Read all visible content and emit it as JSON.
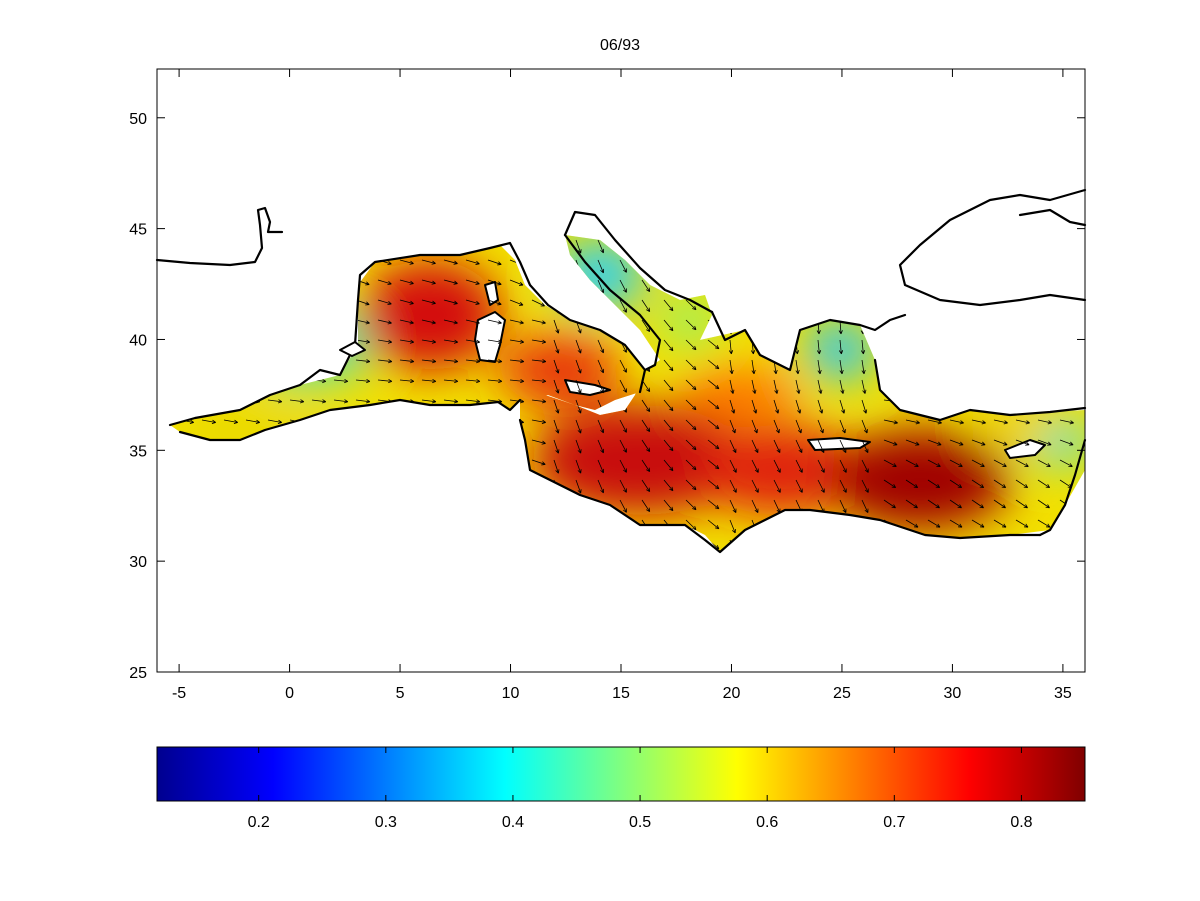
{
  "title": "06/93",
  "map": {
    "x_ticks": [
      -5,
      0,
      5,
      10,
      15,
      20,
      25,
      30,
      35
    ],
    "y_ticks": [
      25,
      30,
      35,
      40,
      45,
      50
    ],
    "xlim": [
      -6,
      36
    ],
    "ylim": [
      25,
      52.2
    ]
  },
  "colorbar": {
    "colormap": "jet",
    "range": [
      0.12,
      0.85
    ],
    "ticks": [
      0.2,
      0.3,
      0.4,
      0.5,
      0.6,
      0.7,
      0.8
    ]
  },
  "chart_data": {
    "type": "heatmap",
    "title": "06/93",
    "xlabel": "",
    "ylabel": "",
    "xlim": [
      -6,
      36
    ],
    "ylim": [
      25,
      52.2
    ],
    "overlay": "vector field arrows",
    "hotspots": [
      {
        "lon": 6,
        "lat": 41,
        "value": 0.82
      },
      {
        "lon": 15,
        "lat": 34.5,
        "value": 0.8
      },
      {
        "lon": 28,
        "lat": 33.8,
        "value": 0.84
      },
      {
        "lon": 12.5,
        "lat": 38.5,
        "value": 0.72
      }
    ],
    "lowspots": [
      {
        "lon": 15,
        "lat": 44,
        "value": 0.38
      },
      {
        "lon": 25,
        "lat": 39.5,
        "value": 0.33
      },
      {
        "lon": 34.5,
        "lat": 35.5,
        "value": 0.45
      },
      {
        "lon": 0,
        "lat": 38.5,
        "value": 0.45
      }
    ]
  }
}
